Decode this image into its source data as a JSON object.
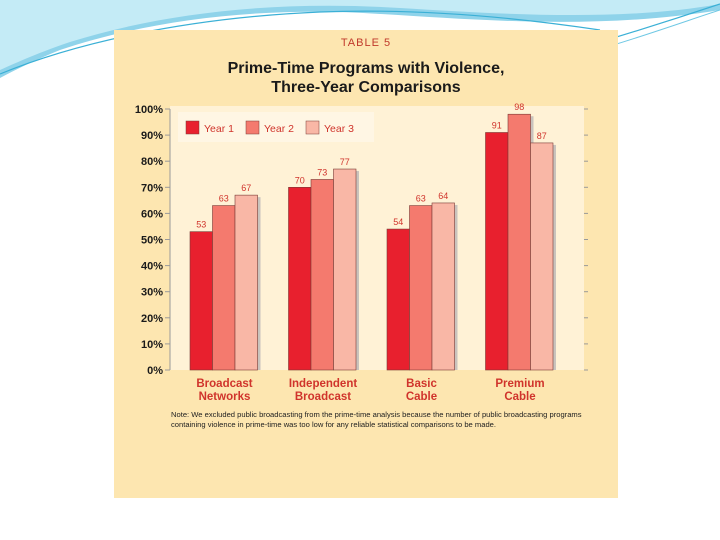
{
  "chart_data": {
    "type": "bar",
    "table_label": "TABLE 5",
    "title_lines": [
      "Prime-Time Programs with Violence,",
      "Three-Year Comparisons"
    ],
    "categories": [
      [
        "Broadcast",
        "Networks"
      ],
      [
        "Independent",
        "Broadcast"
      ],
      [
        "Basic",
        "Cable"
      ],
      [
        "Premium",
        "Cable"
      ]
    ],
    "series": [
      {
        "name": "Year 1",
        "values": [
          53,
          70,
          54,
          91
        ],
        "color": "#e8202e"
      },
      {
        "name": "Year 2",
        "values": [
          63,
          73,
          63,
          98
        ],
        "color": "#f47a6e"
      },
      {
        "name": "Year 3",
        "values": [
          67,
          77,
          64,
          87
        ],
        "color": "#f9b7a6"
      }
    ],
    "y_ticks": [
      "0%",
      "10%",
      "20%",
      "30%",
      "40%",
      "50%",
      "60%",
      "70%",
      "80%",
      "90%",
      "100%"
    ],
    "ylim": [
      0,
      100
    ],
    "legend_position": "top-left",
    "label_color": "#d0342c",
    "note": "Note: We excluded public broadcasting from the prime-time analysis because the number of public broadcasting programs containing violence in prime-time was too low for any reliable statistical comparisons to be made."
  }
}
